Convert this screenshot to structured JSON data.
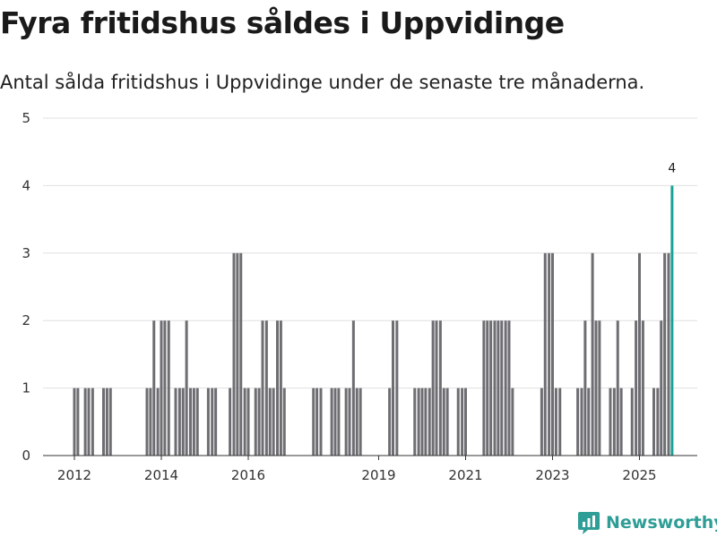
{
  "header": {
    "title": "Fyra fritidshus såldes i Uppvidinge",
    "subtitle": "Antal sålda fritidshus i Uppvidinge under de senaste tre månaderna."
  },
  "brand": {
    "name": "Newsworthy"
  },
  "colors": {
    "bar": "#6e6d72",
    "highlight": "#1aa394",
    "grid": "#e0e0e0",
    "brand": "#2f9e96"
  },
  "chart_data": {
    "type": "bar",
    "title": "Fyra fritidshus såldes i Uppvidinge",
    "xlabel": "",
    "ylabel": "",
    "ylim": [
      0,
      5
    ],
    "yticks": [
      0,
      1,
      2,
      3,
      4,
      5
    ],
    "xticks": [
      {
        "label": "2012",
        "at": 2012.0
      },
      {
        "label": "2014",
        "at": 2014.0
      },
      {
        "label": "2016",
        "at": 2016.0
      },
      {
        "label": "2019",
        "at": 2019.0
      },
      {
        "label": "2021",
        "at": 2021.0
      },
      {
        "label": "2023",
        "at": 2023.0
      },
      {
        "label": "2025",
        "at": 2025.0
      }
    ],
    "series": [
      {
        "name": "Antal sålda fritidshus",
        "points": [
          [
            2012.0,
            1
          ],
          [
            2012.08,
            1
          ],
          [
            2012.25,
            1
          ],
          [
            2012.33,
            1
          ],
          [
            2012.42,
            1
          ],
          [
            2012.67,
            1
          ],
          [
            2012.75,
            1
          ],
          [
            2012.83,
            1
          ],
          [
            2013.67,
            1
          ],
          [
            2013.75,
            1
          ],
          [
            2013.83,
            2
          ],
          [
            2013.92,
            1
          ],
          [
            2014.0,
            2
          ],
          [
            2014.08,
            2
          ],
          [
            2014.17,
            2
          ],
          [
            2014.33,
            1
          ],
          [
            2014.42,
            1
          ],
          [
            2014.5,
            1
          ],
          [
            2014.58,
            2
          ],
          [
            2014.67,
            1
          ],
          [
            2014.75,
            1
          ],
          [
            2014.83,
            1
          ],
          [
            2015.08,
            1
          ],
          [
            2015.17,
            1
          ],
          [
            2015.25,
            1
          ],
          [
            2015.58,
            1
          ],
          [
            2015.67,
            3
          ],
          [
            2015.75,
            3
          ],
          [
            2015.83,
            3
          ],
          [
            2015.92,
            1
          ],
          [
            2016.0,
            1
          ],
          [
            2016.17,
            1
          ],
          [
            2016.25,
            1
          ],
          [
            2016.33,
            2
          ],
          [
            2016.42,
            2
          ],
          [
            2016.5,
            1
          ],
          [
            2016.58,
            1
          ],
          [
            2016.67,
            2
          ],
          [
            2016.75,
            2
          ],
          [
            2016.83,
            1
          ],
          [
            2017.5,
            1
          ],
          [
            2017.58,
            1
          ],
          [
            2017.67,
            1
          ],
          [
            2017.92,
            1
          ],
          [
            2018.0,
            1
          ],
          [
            2018.08,
            1
          ],
          [
            2018.25,
            1
          ],
          [
            2018.33,
            1
          ],
          [
            2018.42,
            2
          ],
          [
            2018.5,
            1
          ],
          [
            2018.58,
            1
          ],
          [
            2019.25,
            1
          ],
          [
            2019.33,
            2
          ],
          [
            2019.42,
            2
          ],
          [
            2019.83,
            1
          ],
          [
            2019.92,
            1
          ],
          [
            2020.0,
            1
          ],
          [
            2020.08,
            1
          ],
          [
            2020.17,
            1
          ],
          [
            2020.25,
            2
          ],
          [
            2020.33,
            2
          ],
          [
            2020.42,
            2
          ],
          [
            2020.5,
            1
          ],
          [
            2020.58,
            1
          ],
          [
            2020.83,
            1
          ],
          [
            2020.92,
            1
          ],
          [
            2021.0,
            1
          ],
          [
            2021.42,
            2
          ],
          [
            2021.5,
            2
          ],
          [
            2021.58,
            2
          ],
          [
            2021.67,
            2
          ],
          [
            2021.75,
            2
          ],
          [
            2021.83,
            2
          ],
          [
            2021.92,
            2
          ],
          [
            2022.0,
            2
          ],
          [
            2022.08,
            1
          ],
          [
            2022.75,
            1
          ],
          [
            2022.83,
            3
          ],
          [
            2022.92,
            3
          ],
          [
            2023.0,
            3
          ],
          [
            2023.08,
            1
          ],
          [
            2023.17,
            1
          ],
          [
            2023.58,
            1
          ],
          [
            2023.67,
            1
          ],
          [
            2023.75,
            2
          ],
          [
            2023.83,
            1
          ],
          [
            2023.92,
            3
          ],
          [
            2024.0,
            2
          ],
          [
            2024.08,
            2
          ],
          [
            2024.33,
            1
          ],
          [
            2024.42,
            1
          ],
          [
            2024.5,
            2
          ],
          [
            2024.58,
            1
          ],
          [
            2024.83,
            1
          ],
          [
            2024.92,
            2
          ],
          [
            2025.0,
            3
          ],
          [
            2025.08,
            2
          ],
          [
            2025.33,
            1
          ],
          [
            2025.42,
            1
          ],
          [
            2025.5,
            2
          ],
          [
            2025.58,
            3
          ],
          [
            2025.67,
            3
          ],
          [
            2025.75,
            4
          ]
        ]
      }
    ],
    "highlight": {
      "x": 2025.75,
      "value": 4,
      "label": "4"
    }
  }
}
